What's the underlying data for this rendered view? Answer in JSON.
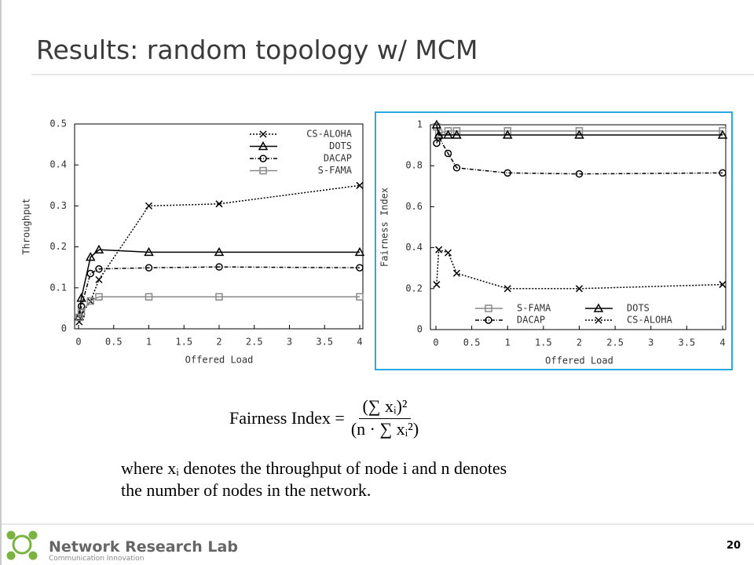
{
  "title": "Results: random topology w/ MCM",
  "chart_data": [
    {
      "type": "line",
      "xlabel": "Offered Load",
      "ylabel": "Throughput",
      "x": [
        0.01,
        0.04,
        0.17,
        0.29,
        1,
        2,
        4
      ],
      "xlim": [
        0,
        4
      ],
      "xticks": [
        0,
        0.5,
        1,
        1.5,
        2,
        2.5,
        3,
        3.5,
        4
      ],
      "ylim": [
        0,
        0.5
      ],
      "yticks": [
        0,
        0.1,
        0.2,
        0.3,
        0.4,
        0.5
      ],
      "legend": "upper right",
      "series": [
        {
          "name": "CS-ALOHA",
          "color": "#000000",
          "marker": "x",
          "line_style": "dotted",
          "values": [
            0.017,
            0.036,
            0.067,
            0.12,
            0.3,
            0.305,
            0.35
          ]
        },
        {
          "name": "DOTS",
          "color": "#000000",
          "marker": "triangle",
          "line_style": "solid",
          "values": [
            0.03,
            0.075,
            0.175,
            0.193,
            0.187,
            0.187,
            0.187
          ]
        },
        {
          "name": "DACAP",
          "color": "#000000",
          "marker": "circle",
          "line_style": "dashdot",
          "values": [
            0.027,
            0.055,
            0.135,
            0.146,
            0.149,
            0.151,
            0.149
          ]
        },
        {
          "name": "S-FAMA",
          "color": "#888888",
          "marker": "square",
          "line_style": "solid",
          "values": [
            0.028,
            0.04,
            0.068,
            0.078,
            0.078,
            0.078,
            0.078
          ]
        }
      ]
    },
    {
      "type": "line",
      "xlabel": "Offered Load",
      "ylabel": "Fairness Index",
      "x": [
        0.01,
        0.04,
        0.17,
        0.29,
        1,
        2,
        4
      ],
      "xlim": [
        0,
        4
      ],
      "xticks": [
        0,
        0.5,
        1,
        1.5,
        2,
        2.5,
        3,
        3.5,
        4
      ],
      "ylim": [
        0,
        1
      ],
      "yticks": [
        0,
        0.2,
        0.4,
        0.6,
        0.8,
        1
      ],
      "legend": "lower center",
      "series": [
        {
          "name": "S-FAMA",
          "color": "#888888",
          "marker": "square",
          "line_style": "solid",
          "values": [
            0.99,
            0.96,
            0.97,
            0.97,
            0.97,
            0.97,
            0.97
          ]
        },
        {
          "name": "DOTS",
          "color": "#000000",
          "marker": "triangle",
          "line_style": "solid",
          "values": [
            1,
            0.95,
            0.95,
            0.95,
            0.95,
            0.95,
            0.95
          ]
        },
        {
          "name": "DACAP",
          "color": "#000000",
          "marker": "circle",
          "line_style": "dashdot",
          "values": [
            0.91,
            0.94,
            0.86,
            0.79,
            0.765,
            0.76,
            0.765
          ]
        },
        {
          "name": "CS-ALOHA",
          "color": "#000000",
          "marker": "x",
          "line_style": "dotted",
          "values": [
            0.22,
            0.39,
            0.375,
            0.275,
            0.2,
            0.2,
            0.22
          ]
        }
      ]
    }
  ],
  "formula": {
    "lhs": "Fairness Index =",
    "numerator": "(∑ xᵢ)²",
    "denominator": "(n · ∑ xᵢ²)"
  },
  "description": [
    "where xᵢ denotes the throughput of node i and n denotes",
    "the number of nodes in the network."
  ],
  "footer": {
    "lab": "Network Research Lab",
    "tagline": "Communication Innovation",
    "page": "20"
  }
}
